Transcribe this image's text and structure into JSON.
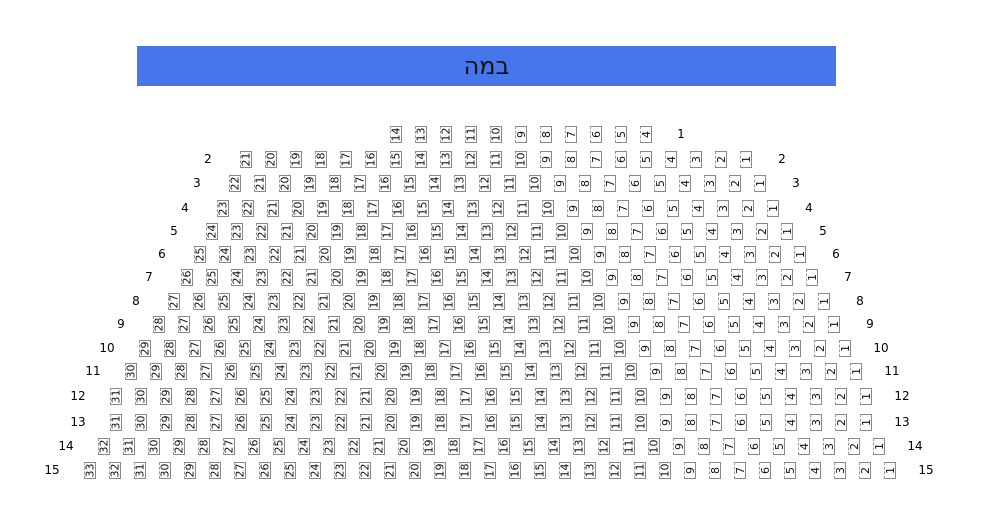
{
  "stage": {
    "label": "במה",
    "color": "#4577ea"
  },
  "rows": [
    {
      "label": "1",
      "seats_from": 14,
      "seats_to": 4,
      "left_label": false
    },
    {
      "label": "2",
      "seats_from": 21,
      "seats_to": 1,
      "left_label": true
    },
    {
      "label": "3",
      "seats_from": 22,
      "seats_to": 1,
      "left_label": true
    },
    {
      "label": "4",
      "seats_from": 23,
      "seats_to": 1,
      "left_label": true
    },
    {
      "label": "5",
      "seats_from": 24,
      "seats_to": 1,
      "left_label": true
    },
    {
      "label": "6",
      "seats_from": 25,
      "seats_to": 1,
      "left_label": true
    },
    {
      "label": "7",
      "seats_from": 26,
      "seats_to": 1,
      "left_label": true
    },
    {
      "label": "8",
      "seats_from": 27,
      "seats_to": 1,
      "left_label": true
    },
    {
      "label": "9",
      "seats_from": 28,
      "seats_to": 1,
      "left_label": true
    },
    {
      "label": "10",
      "seats_from": 29,
      "seats_to": 1,
      "left_label": true
    },
    {
      "label": "11",
      "seats_from": 30,
      "seats_to": 1,
      "left_label": true
    },
    {
      "label": "12",
      "seats_from": 31,
      "seats_to": 1,
      "left_label": true
    },
    {
      "label": "13",
      "seats_from": 31,
      "seats_to": 1,
      "left_label": true
    },
    {
      "label": "14",
      "seats_from": 32,
      "seats_to": 1,
      "left_label": true
    },
    {
      "label": "15",
      "seats_from": 33,
      "seats_to": 1,
      "left_label": true
    }
  ]
}
